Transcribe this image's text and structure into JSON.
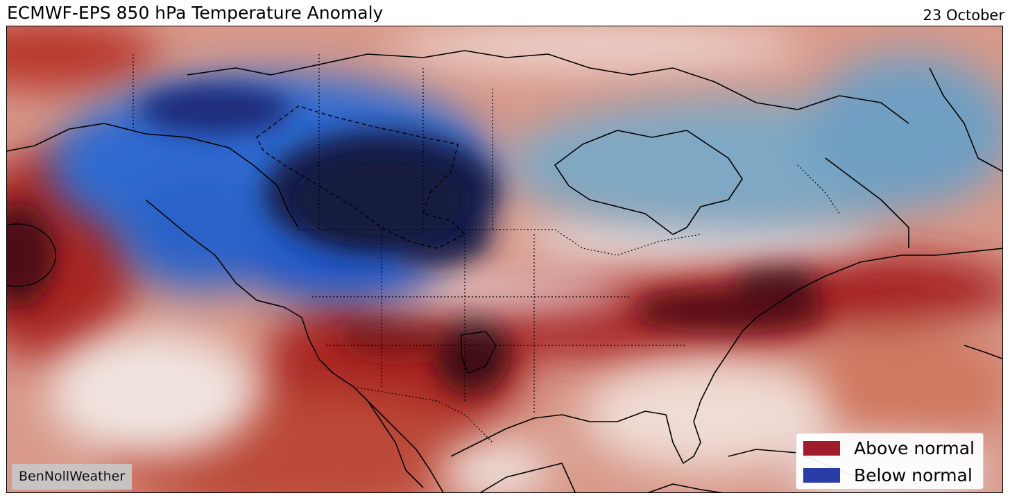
{
  "header": {
    "title": "ECMWF-EPS 850 hPa Temperature Anomaly",
    "date": "23 October"
  },
  "watermark": "BenNollWeather",
  "legend": {
    "items": [
      {
        "label": "Above normal",
        "color": "#a01c2c"
      },
      {
        "label": "Below normal",
        "color": "#2a3ca8"
      }
    ]
  },
  "colors": {
    "warm_strong": "#4a0a14",
    "warm_mid": "#b52e26",
    "warm_light": "#e6b3a4",
    "neutral": "#f2eeee",
    "cool_light": "#8db3cc",
    "cool_mid": "#1f56c7",
    "cool_strong": "#161d44"
  }
}
